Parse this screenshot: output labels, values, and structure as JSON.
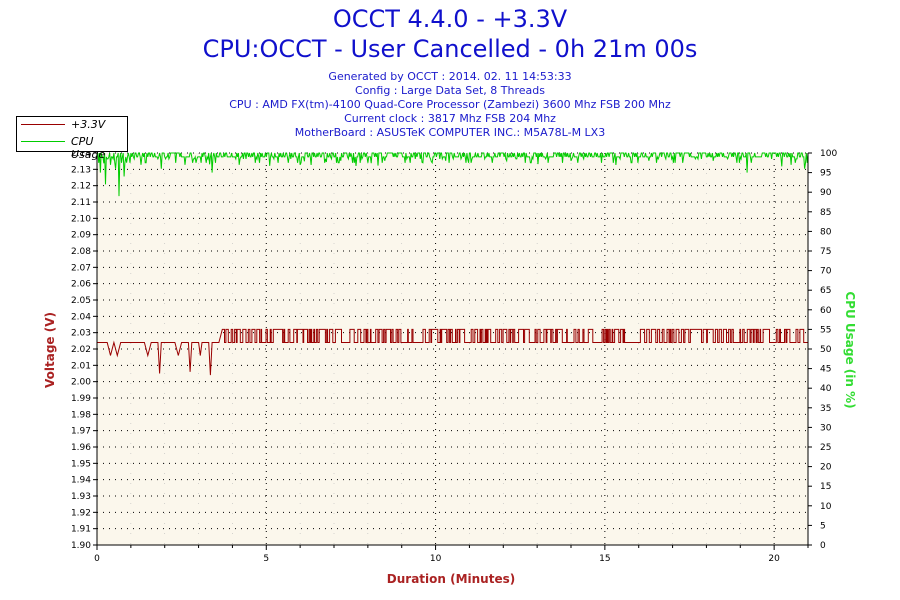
{
  "header": {
    "title": "OCCT 4.4.0 - +3.3V",
    "subtitle": "CPU:OCCT - User Cancelled - 0h 21m 00s",
    "info_lines": [
      "Generated by OCCT : 2014. 02. 11 14:53:33",
      "Config : Large Data Set, 8 Threads",
      "CPU : AMD FX(tm)-4100 Quad-Core Processor (Zambezi) 3600 Mhz FSB 200 Mhz",
      "Current clock : 3817 Mhz FSB 204 Mhz",
      "MotherBoard : ASUSTeK COMPUTER INC.: M5A78L-M LX3"
    ]
  },
  "chart_data": {
    "type": "line",
    "xlabel": "Duration (Minutes)",
    "ylabel": "Voltage (V)",
    "y2label": "CPU Usage (in %)",
    "xlim": [
      0,
      21
    ],
    "ylim": [
      1.9,
      2.14
    ],
    "y2lim": [
      0,
      100
    ],
    "x_ticks": [
      0,
      5,
      10,
      15,
      20
    ],
    "y_ticks": [
      "1.90",
      "1.91",
      "1.92",
      "1.93",
      "1.94",
      "1.95",
      "1.96",
      "1.97",
      "1.98",
      "1.99",
      "2.00",
      "2.01",
      "2.02",
      "2.03",
      "2.04",
      "2.05",
      "2.06",
      "2.07",
      "2.08",
      "2.09",
      "2.10",
      "2.11",
      "2.12",
      "2.13",
      "2.14"
    ],
    "y2_ticks": [
      0,
      5,
      10,
      15,
      20,
      25,
      30,
      35,
      40,
      45,
      50,
      55,
      60,
      65,
      70,
      75,
      80,
      85,
      90,
      95,
      100
    ],
    "grid": true,
    "legend_position": "top-left",
    "colors": {
      "voltage": "#990000",
      "cpu": "#00cc00",
      "axis_label": "#aa2222",
      "plot_bg": "#fbf7ec"
    },
    "series": [
      {
        "name": "+3.3V",
        "color": "#990000",
        "points": [
          [
            0,
            2.024
          ],
          [
            0.3,
            2.024
          ],
          [
            0.4,
            2.016
          ],
          [
            0.5,
            2.024
          ],
          [
            0.6,
            2.016
          ],
          [
            0.7,
            2.024
          ],
          [
            1.0,
            2.024
          ],
          [
            1.4,
            2.024
          ],
          [
            1.5,
            2.016
          ],
          [
            1.6,
            2.024
          ],
          [
            1.8,
            2.024
          ],
          [
            1.85,
            2.005
          ],
          [
            1.9,
            2.024
          ],
          [
            2.3,
            2.024
          ],
          [
            2.4,
            2.016
          ],
          [
            2.5,
            2.024
          ],
          [
            2.7,
            2.024
          ],
          [
            2.75,
            2.006
          ],
          [
            2.8,
            2.024
          ],
          [
            3.0,
            2.024
          ],
          [
            3.05,
            2.016
          ],
          [
            3.1,
            2.024
          ],
          [
            3.3,
            2.024
          ],
          [
            3.35,
            2.004
          ],
          [
            3.4,
            2.024
          ],
          [
            3.6,
            2.024
          ],
          [
            3.7,
            2.032
          ],
          [
            21,
            2.032
          ]
        ],
        "noise_between": [
          2.024,
          2.032
        ],
        "noise_start": 3.7
      },
      {
        "name": "CPU Usage",
        "color": "#00cc00",
        "axis": "right",
        "baseline": 99,
        "dips": [
          [
            0.1,
            95
          ],
          [
            0.25,
            92
          ],
          [
            0.4,
            97
          ],
          [
            0.55,
            96
          ],
          [
            0.65,
            89
          ],
          [
            0.8,
            94
          ],
          [
            1.3,
            97
          ],
          [
            1.9,
            96
          ],
          [
            2.6,
            97
          ],
          [
            3.4,
            95
          ],
          [
            4.2,
            97
          ],
          [
            5.1,
            98
          ],
          [
            6.0,
            97
          ],
          [
            7.2,
            98
          ],
          [
            8.5,
            98
          ],
          [
            10.3,
            98
          ],
          [
            12.1,
            98
          ],
          [
            14.0,
            98
          ],
          [
            16.3,
            98
          ],
          [
            18.2,
            98
          ],
          [
            19.2,
            95
          ],
          [
            20.5,
            97
          ],
          [
            20.9,
            96
          ]
        ]
      }
    ]
  }
}
